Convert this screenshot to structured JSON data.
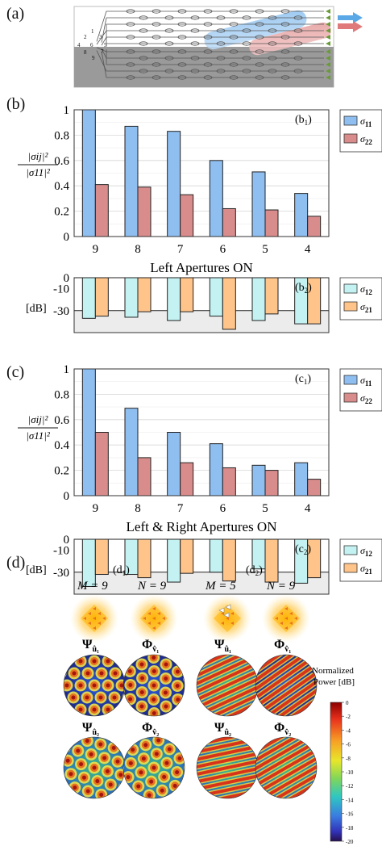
{
  "panel_labels": {
    "a": "(a)",
    "b": "(b)",
    "c": "(c)",
    "d": "(d)"
  },
  "circuit": {
    "port_labels": [
      "1",
      "2",
      "3",
      "4",
      "5",
      "6",
      "7",
      "8",
      "9"
    ],
    "arrow_colors": [
      "#5aa9e6",
      "#e07a7a"
    ]
  },
  "chart_data": [
    {
      "id": "b1",
      "type": "bar",
      "tag": "(b",
      "tag_sub": "1",
      "tag_close": ")",
      "xlabel": "Left Apertures ON",
      "ylabel": {
        "num": "|σij|²",
        "den": "|σ11|²"
      },
      "categories": [
        "9",
        "8",
        "7",
        "6",
        "5",
        "4"
      ],
      "ylim": [
        0,
        1
      ],
      "yticks": [
        "0",
        "0.2",
        "0.4",
        "0.6",
        "0.8",
        "1"
      ],
      "grid": true,
      "legend_position": "right",
      "series": [
        {
          "name": "σ11",
          "color": "#8fbff0",
          "values": [
            1.0,
            0.87,
            0.83,
            0.6,
            0.51,
            0.34
          ]
        },
        {
          "name": "σ22",
          "color": "#d98c8c",
          "values": [
            0.41,
            0.39,
            0.33,
            0.22,
            0.21,
            0.16
          ]
        }
      ]
    },
    {
      "id": "b2",
      "type": "bar",
      "tag": "(b",
      "tag_sub": "2",
      "tag_close": ")",
      "ylabel": "[dB]",
      "categories": [
        "9",
        "8",
        "7",
        "6",
        "5",
        "4"
      ],
      "ylim": [
        -50,
        0
      ],
      "yticks": [
        "0",
        "-10",
        "-30"
      ],
      "noise_floor": -30,
      "legend_position": "right",
      "series": [
        {
          "name": "σ12",
          "color": "#c4f2f2",
          "values": [
            -37,
            -36,
            -39,
            -35,
            -39,
            -42
          ]
        },
        {
          "name": "σ21",
          "color": "#ffc48a",
          "values": [
            -35,
            -31,
            -31,
            -47,
            -33,
            -42
          ]
        }
      ]
    },
    {
      "id": "c1",
      "type": "bar",
      "tag": "(c",
      "tag_sub": "1",
      "tag_close": ")",
      "xlabel": "Left & Right Apertures ON",
      "ylabel": {
        "num": "|σij|²",
        "den": "|σ11|²"
      },
      "categories": [
        "9",
        "8",
        "7",
        "6",
        "5",
        "4"
      ],
      "ylim": [
        0,
        1
      ],
      "yticks": [
        "0",
        "0.2",
        "0.4",
        "0.6",
        "0.8",
        "1"
      ],
      "grid": true,
      "legend_position": "right",
      "series": [
        {
          "name": "σ11",
          "color": "#8fbff0",
          "values": [
            1.0,
            0.69,
            0.5,
            0.41,
            0.24,
            0.26
          ]
        },
        {
          "name": "σ22",
          "color": "#d98c8c",
          "values": [
            0.5,
            0.3,
            0.26,
            0.22,
            0.2,
            0.13
          ]
        }
      ]
    },
    {
      "id": "c2",
      "type": "bar",
      "tag": "(c",
      "tag_sub": "2",
      "tag_close": ")",
      "ylabel": "[dB]",
      "categories": [
        "9",
        "8",
        "7",
        "6",
        "5",
        "4"
      ],
      "ylim": [
        -50,
        0
      ],
      "yticks": [
        "0",
        "-10",
        "-30"
      ],
      "noise_floor": -30,
      "legend_position": "right",
      "series": [
        {
          "name": "σ12",
          "color": "#c4f2f2",
          "values": [
            -43,
            -32,
            -39,
            -30,
            -27,
            -40
          ]
        },
        {
          "name": "σ21",
          "color": "#ffc48a",
          "values": [
            -32,
            -35,
            -31,
            -38,
            -39,
            -35
          ]
        }
      ]
    }
  ],
  "modes": {
    "d1": {
      "tag": "(d",
      "sub": "1",
      "close": ")",
      "m_label": "M = 9",
      "n_label": "N = 9"
    },
    "d2": {
      "tag": "(d",
      "sub": "2",
      "close": ")",
      "m_label": "M = 5",
      "n_label": "N = 9"
    },
    "labels": {
      "psi1": "Ψ",
      "psi1_sub": "û₁",
      "phi1": "Φ",
      "phi1_sub": "v̂₁",
      "psi2": "Ψ",
      "psi2_sub": "û₂",
      "phi2": "Φ",
      "phi2_sub": "v̂₂"
    },
    "colorbar": {
      "title_line1": "Normalized",
      "title_line2": "Power [dB]",
      "ticks": [
        "0",
        "-2",
        "-4",
        "-6",
        "-8",
        "-10",
        "-12",
        "-14",
        "-16",
        "-18",
        "-20"
      ]
    }
  }
}
